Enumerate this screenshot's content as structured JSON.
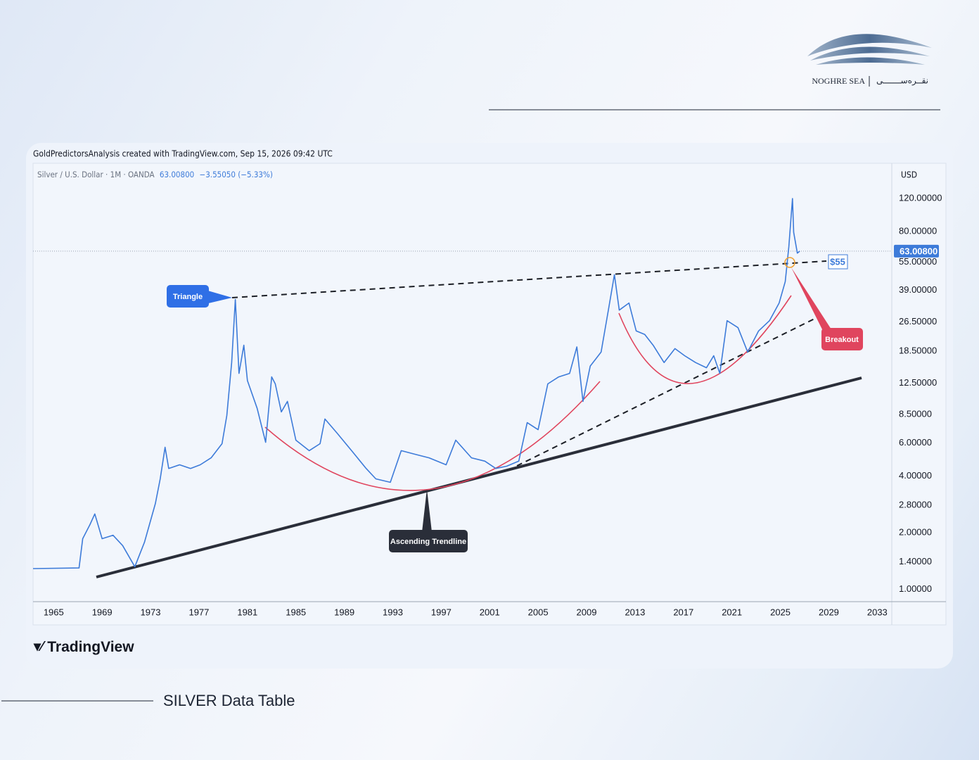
{
  "brand": {
    "name": "NOGHRE SEA",
    "name_fa": "نقــره‌ســـــــی"
  },
  "footer_title": "SILVER Data Table",
  "chart_data": {
    "type": "line",
    "attribution": "GoldPredictorsAnalysis created with TradingView.com, Sep 15, 2026 09:42 UTC",
    "watermark": "TradingView",
    "currency": "USD",
    "change": "−3.55050 (−5.33%)",
    "last_price": {
      "value": 63.008,
      "label": "63.00800"
    },
    "log_scale": true,
    "grid": true,
    "xlim": [
      1963.3,
      2034.2
    ],
    "ylim": [
      0.86,
      185
    ],
    "xticks": [
      1965,
      1969,
      1973,
      1977,
      1981,
      1985,
      1989,
      1993,
      1997,
      2001,
      2005,
      2009,
      2013,
      2017,
      2021,
      2025,
      2029,
      2033
    ],
    "yticks": [
      {
        "value": 1,
        "label": "1.00000"
      },
      {
        "value": 1.4,
        "label": "1.40000"
      },
      {
        "value": 2,
        "label": "2.00000"
      },
      {
        "value": 2.8,
        "label": "2.80000"
      },
      {
        "value": 4,
        "label": "4.00000"
      },
      {
        "value": 6,
        "label": "6.00000"
      },
      {
        "value": 8.5,
        "label": "8.50000"
      },
      {
        "value": 12.5,
        "label": "12.50000"
      },
      {
        "value": 18.5,
        "label": "18.50000"
      },
      {
        "value": 26.5,
        "label": "26.50000"
      },
      {
        "value": 39,
        "label": "39.00000"
      },
      {
        "value": 55,
        "label": "55.00000"
      },
      {
        "value": 80,
        "label": "80.00000"
      },
      {
        "value": 120,
        "label": "120.00000"
      }
    ],
    "annotations": {
      "triangle": "Triangle",
      "trendline": "Ascending Trendline",
      "breakout": "Breakout",
      "level": "$55"
    },
    "series": [
      {
        "name": "Silver / U.S. Dollar · 1M · OANDA",
        "color": "#3d7bd9",
        "x": [
          1963.3,
          1967.1,
          1967.4,
          1968.0,
          1968.4,
          1969.0,
          1969.9,
          1970.7,
          1971.7,
          1972.5,
          1973.4,
          1973.8,
          1974.2,
          1974.5,
          1975.4,
          1976.3,
          1977.1,
          1978.0,
          1978.9,
          1979.3,
          1979.7,
          1980.0,
          1980.3,
          1980.7,
          1981.0,
          1981.8,
          1982.5,
          1983.0,
          1983.3,
          1983.8,
          1984.3,
          1985.0,
          1986.1,
          1987.0,
          1987.4,
          1988.4,
          1989.6,
          1990.8,
          1991.6,
          1992.8,
          1993.7,
          1994.8,
          1996.0,
          1997.4,
          1998.2,
          1999.5,
          2000.6,
          2001.5,
          2002.4,
          2003.4,
          2004.1,
          2005.0,
          2005.8,
          2006.7,
          2007.6,
          2008.2,
          2008.7,
          2009.3,
          2010.2,
          2010.8,
          2011.3,
          2011.7,
          2012.5,
          2013.1,
          2013.8,
          2014.5,
          2015.4,
          2016.3,
          2017.1,
          2018.0,
          2018.9,
          2019.5,
          2020.0,
          2020.6,
          2021.5,
          2022.3,
          2023.2,
          2024.1,
          2024.9,
          2025.4,
          2025.7,
          2026.0,
          2026.1,
          2026.4,
          2026.6
        ],
        "values": [
          1.29,
          1.3,
          1.86,
          2.21,
          2.52,
          1.86,
          1.94,
          1.71,
          1.32,
          1.78,
          2.86,
          3.87,
          5.7,
          4.4,
          4.6,
          4.4,
          4.6,
          5.01,
          5.96,
          8.41,
          16.1,
          34.9,
          14.1,
          19.9,
          12.9,
          9.19,
          6.06,
          13.5,
          12.4,
          8.8,
          10.0,
          6.22,
          5.47,
          5.96,
          8.06,
          6.78,
          5.47,
          4.4,
          3.87,
          3.71,
          5.47,
          5.24,
          5.01,
          4.6,
          6.22,
          5.01,
          4.81,
          4.4,
          4.52,
          4.81,
          7.71,
          7.07,
          12.4,
          13.5,
          14.1,
          19.5,
          10.0,
          15.4,
          18.3,
          30.6,
          47.2,
          30.6,
          33.4,
          23.7,
          22.7,
          19.9,
          16.1,
          19.1,
          17.5,
          16.1,
          15.1,
          17.5,
          14.1,
          26.9,
          24.7,
          18.3,
          23.7,
          26.9,
          33.4,
          43.4,
          66.5,
          120,
          79.4,
          61.5,
          63.008
        ]
      }
    ]
  }
}
